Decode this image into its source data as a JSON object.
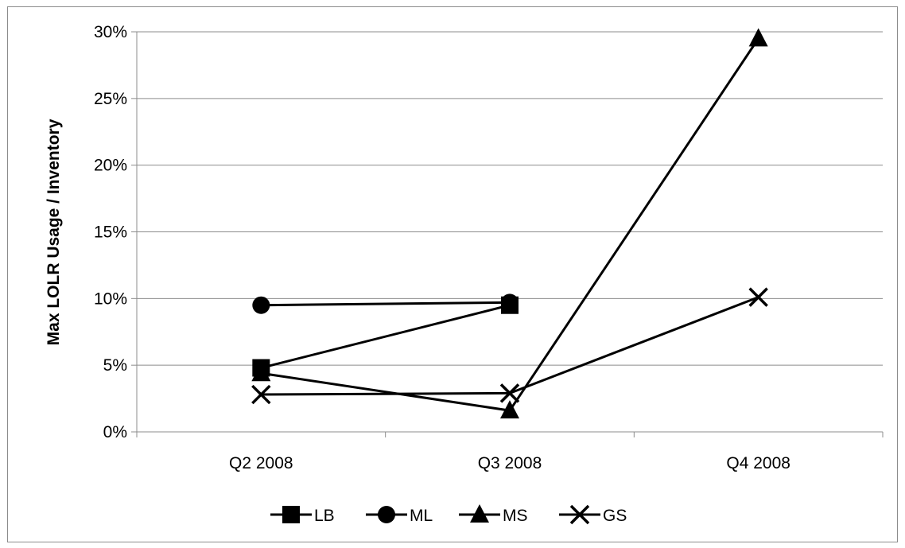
{
  "chart_data": {
    "type": "line",
    "title": "",
    "xlabel": "",
    "ylabel": "Max LOLR Usage / Inventory",
    "categories": [
      "Q2 2008",
      "Q3 2008",
      "Q4 2008"
    ],
    "ylim": [
      0,
      30
    ],
    "yticks": [
      0,
      5,
      10,
      15,
      20,
      25,
      30
    ],
    "ytick_labels": [
      "0%",
      "5%",
      "10%",
      "15%",
      "20%",
      "25%",
      "30%"
    ],
    "grid": "horizontal",
    "legend_position": "bottom",
    "line_color": "#000000",
    "series": [
      {
        "name": "LB",
        "marker": "square",
        "values": [
          4.8,
          9.5,
          null
        ]
      },
      {
        "name": "ML",
        "marker": "circle",
        "values": [
          9.5,
          9.7,
          null
        ]
      },
      {
        "name": "MS",
        "marker": "triangle",
        "values": [
          4.4,
          1.6,
          29.5
        ]
      },
      {
        "name": "GS",
        "marker": "x",
        "values": [
          2.8,
          2.9,
          10.1
        ]
      }
    ]
  }
}
